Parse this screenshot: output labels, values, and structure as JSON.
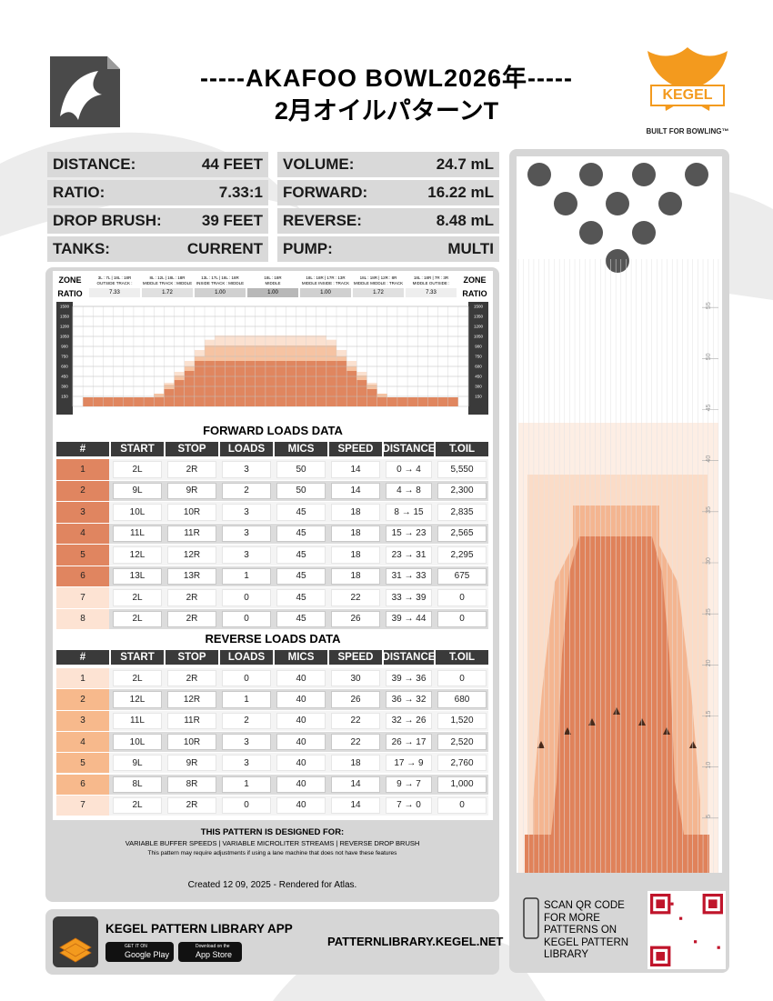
{
  "header": {
    "title": "-----AKAFOO BOWL2026年-----",
    "subtitle": "2月オイルパターンT",
    "brand": "KEGEL",
    "tagline": "BUILT FOR BOWLING™"
  },
  "specs": [
    [
      "DISTANCE:",
      "44 FEET"
    ],
    [
      "RATIO:",
      "7.33:1"
    ],
    [
      "DROP BRUSH:",
      "39 FEET"
    ],
    [
      "TANKS:",
      "CURRENT"
    ],
    [
      "VOLUME:",
      "24.7 mL"
    ],
    [
      "FORWARD:",
      "16.22 mL"
    ],
    [
      "REVERSE:",
      "8.48 mL"
    ],
    [
      "PUMP:",
      "MULTI"
    ]
  ],
  "zones": {
    "zone_label": "ZONE",
    "ratio_label": "RATIO",
    "items": [
      {
        "range": "3L : 7L | 18L : 18R",
        "name": "OUTSIDE TRACK : MIDDLE",
        "ratio": "7.33"
      },
      {
        "range": "8L : 12L | 18L : 18R",
        "name": "MIDDLE TRACK : MIDDLE",
        "ratio": "1.72"
      },
      {
        "range": "13L : 17L | 18L : 18R",
        "name": "INSIDE TRACK : MIDDLE",
        "ratio": "1.00"
      },
      {
        "range": "18L : 18R",
        "name": "MIDDLE",
        "ratio": "1.00"
      },
      {
        "range": "18L : 18R | 17R : 13R",
        "name": "MIDDLE INSIDE : TRACK",
        "ratio": "1.00"
      },
      {
        "range": "18L : 18R | 12R : 8R",
        "name": "MIDDLE MIDDLE : TRACK",
        "ratio": "1.72"
      },
      {
        "range": "18L : 18R | 7R : 3R",
        "name": "MIDDLE OUTSIDE : TRACK",
        "ratio": "7.33"
      }
    ]
  },
  "profile": {
    "ylim": [
      0,
      1500
    ],
    "yticks": [
      150,
      300,
      450,
      600,
      750,
      900,
      1050,
      1200,
      1350,
      1500
    ],
    "boards": [
      1,
      2,
      3,
      4,
      5,
      6,
      7,
      8,
      9,
      10,
      11,
      12,
      13,
      14,
      15,
      16,
      17,
      18,
      19,
      20,
      19,
      18,
      17,
      16,
      15,
      14,
      13,
      12,
      11,
      10,
      9,
      8,
      7,
      6,
      5,
      4,
      3,
      2,
      1
    ],
    "series": [
      {
        "color": "#fbe1d0",
        "values": [
          0,
          136,
          136,
          136,
          136,
          136,
          136,
          136,
          191,
          355,
          518,
          682,
          846,
          1000,
          1064,
          1064,
          1064,
          1064,
          1064,
          1064,
          1064,
          1064,
          1064,
          1064,
          1064,
          1000,
          846,
          682,
          518,
          355,
          191,
          136,
          136,
          136,
          136,
          136,
          136,
          136,
          0
        ]
      },
      {
        "color": "#f6c3a2",
        "values": [
          0,
          136,
          136,
          136,
          136,
          136,
          136,
          136,
          191,
          327,
          464,
          600,
          750,
          914,
          914,
          914,
          914,
          914,
          914,
          914,
          914,
          914,
          914,
          914,
          914,
          914,
          750,
          600,
          464,
          327,
          191,
          136,
          136,
          136,
          136,
          136,
          136,
          136,
          0
        ]
      },
      {
        "color": "#e0865f",
        "values": [
          0,
          136,
          136,
          136,
          136,
          136,
          136,
          136,
          136,
          259,
          395,
          532,
          682,
          682,
          682,
          682,
          682,
          682,
          682,
          682,
          682,
          682,
          682,
          682,
          682,
          682,
          682,
          532,
          395,
          259,
          136,
          136,
          136,
          136,
          136,
          136,
          136,
          136,
          0
        ]
      }
    ]
  },
  "forward": {
    "title": "FORWARD LOADS DATA",
    "columns": [
      "#",
      "START",
      "STOP",
      "LOADS",
      "MICS",
      "SPEED",
      "DISTANCE",
      "T.OIL"
    ],
    "rows": [
      [
        1,
        "2L",
        "2R",
        3,
        50,
        14,
        "0 → 4",
        "5,550"
      ],
      [
        2,
        "9L",
        "9R",
        2,
        50,
        14,
        "4 → 8",
        "2,300"
      ],
      [
        3,
        "10L",
        "10R",
        3,
        45,
        18,
        "8 → 15",
        "2,835"
      ],
      [
        4,
        "11L",
        "11R",
        3,
        45,
        18,
        "15 → 23",
        "2,565"
      ],
      [
        5,
        "12L",
        "12R",
        3,
        45,
        18,
        "23 → 31",
        "2,295"
      ],
      [
        6,
        "13L",
        "13R",
        1,
        45,
        18,
        "31 → 33",
        675
      ],
      [
        7,
        "2L",
        "2R",
        0,
        45,
        22,
        "33 → 39",
        0
      ],
      [
        8,
        "2L",
        "2R",
        0,
        45,
        26,
        "39 → 44",
        0
      ]
    ],
    "row_colors": [
      "#e08560",
      "#e08560",
      "#e08560",
      "#e08560",
      "#e08560",
      "#e08560",
      "#fde3d3",
      "#fde3d3"
    ]
  },
  "reverse": {
    "title": "REVERSE LOADS DATA",
    "columns": [
      "#",
      "START",
      "STOP",
      "LOADS",
      "MICS",
      "SPEED",
      "DISTANCE",
      "T.OIL"
    ],
    "rows": [
      [
        1,
        "2L",
        "2R",
        0,
        40,
        30,
        "39 → 36",
        0
      ],
      [
        2,
        "12L",
        "12R",
        1,
        40,
        26,
        "36 → 32",
        680
      ],
      [
        3,
        "11L",
        "11R",
        2,
        40,
        22,
        "32 → 26",
        "1,520"
      ],
      [
        4,
        "10L",
        "10R",
        3,
        40,
        22,
        "26 → 17",
        "2,520"
      ],
      [
        5,
        "9L",
        "9R",
        3,
        40,
        18,
        "17 → 9",
        "2,760"
      ],
      [
        6,
        "8L",
        "8R",
        1,
        40,
        14,
        "9 → 7",
        "1,000"
      ],
      [
        7,
        "2L",
        "2R",
        0,
        40,
        14,
        "7 → 0",
        0
      ]
    ],
    "row_colors": [
      "#fde3d3",
      "#f7b98c",
      "#f7b98c",
      "#f7b98c",
      "#f7b98c",
      "#f7b98c",
      "#fde3d3"
    ]
  },
  "notes": {
    "heading": "THIS PATTERN IS DESIGNED FOR:",
    "features": "VARIABLE BUFFER SPEEDS | VARIABLE MICROLITER STREAMS | REVERSE DROP BRUSH",
    "disclaimer": "This pattern may require adjustments if using a lane machine that does not have these features",
    "created": "Created 12 09, 2025 - Rendered for Atlas."
  },
  "app": {
    "title": "KEGEL PATTERN LIBRARY APP",
    "google_small": "GET IT ON",
    "google": "Google Play",
    "apple_small": "Download on the",
    "apple": "App Store",
    "url": "PATTERNLIBRARY.KEGEL.NET"
  },
  "qr": {
    "text": "SCAN QR CODE FOR MORE PATTERNS ON KEGEL PATTERN LIBRARY"
  },
  "lane": {
    "ylim": [
      0,
      60
    ],
    "yticks": [
      5,
      10,
      15,
      20,
      25,
      30,
      35,
      40,
      45,
      50,
      55
    ]
  }
}
